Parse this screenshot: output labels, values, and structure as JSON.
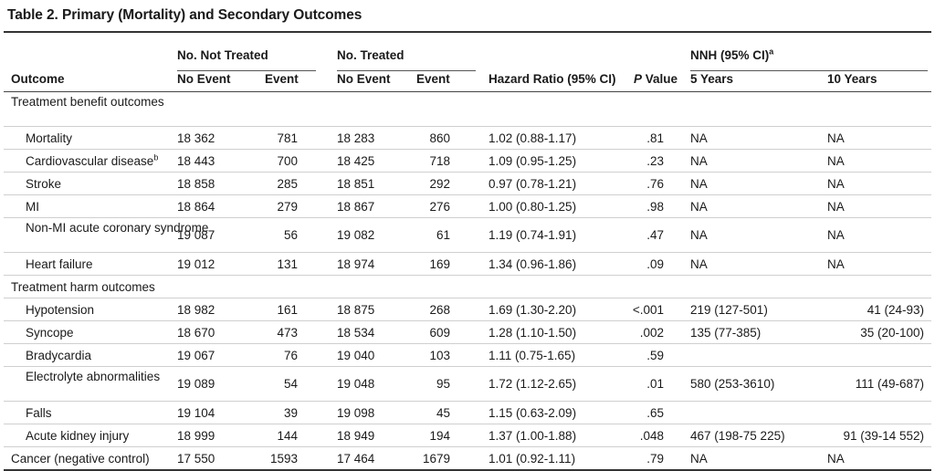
{
  "title": "Table 2. Primary (Mortality) and Secondary Outcomes",
  "groups": {
    "not_treated": "No. Not Treated",
    "treated": "No. Treated",
    "nnh": "NNH (95% CI)",
    "nnh_sup": "a"
  },
  "columns": {
    "outcome": "Outcome",
    "nt_no_event": "No Event",
    "nt_event": "Event",
    "t_no_event": "No Event",
    "t_event": "Event",
    "hr": "Hazard Ratio (95% CI)",
    "p_italic": "P",
    "p_rest": " Value",
    "y5": "5 Years",
    "y10": "10 Years"
  },
  "rows": [
    {
      "label": "Treatment benefit outcomes",
      "type": "section"
    },
    {
      "label": "Mortality",
      "sup": "",
      "ntne": "18 362",
      "nte": "781",
      "tne": "18 283",
      "te": "860",
      "hr": "1.02 (0.88-1.17)",
      "p": ".81",
      "y5": "NA",
      "y10": "NA"
    },
    {
      "label": "Cardiovascular disease",
      "sup": "b",
      "ntne": "18 443",
      "nte": "700",
      "tne": "18 425",
      "te": "718",
      "hr": "1.09 (0.95-1.25)",
      "p": ".23",
      "y5": "NA",
      "y10": "NA"
    },
    {
      "label": "Stroke",
      "sup": "",
      "ntne": "18 858",
      "nte": "285",
      "tne": "18 851",
      "te": "292",
      "hr": "0.97 (0.78-1.21)",
      "p": ".76",
      "y5": "NA",
      "y10": "NA"
    },
    {
      "label": "MI",
      "sup": "",
      "ntne": "18 864",
      "nte": "279",
      "tne": "18 867",
      "te": "276",
      "hr": "1.00 (0.80-1.25)",
      "p": ".98",
      "y5": "NA",
      "y10": "NA"
    },
    {
      "label": "Non-MI acute coronary syndrome",
      "sup": "",
      "ntne": "19 087",
      "nte": "56",
      "tne": "19 082",
      "te": "61",
      "hr": "1.19 (0.74-1.91)",
      "p": ".47",
      "y5": "NA",
      "y10": "NA"
    },
    {
      "label": "Heart failure",
      "sup": "",
      "ntne": "19 012",
      "nte": "131",
      "tne": "18 974",
      "te": "169",
      "hr": "1.34 (0.96-1.86)",
      "p": ".09",
      "y5": "NA",
      "y10": "NA"
    },
    {
      "label": "Treatment harm outcomes",
      "type": "section"
    },
    {
      "label": "Hypotension",
      "sup": "",
      "ntne": "18 982",
      "nte": "161",
      "tne": "18 875",
      "te": "268",
      "hr": "1.69 (1.30-2.20)",
      "p": "<.001",
      "y5": "219 (127-501)",
      "y10": "41 (24-93)"
    },
    {
      "label": "Syncope",
      "sup": "",
      "ntne": "18 670",
      "nte": "473",
      "tne": "18 534",
      "te": "609",
      "hr": "1.28 (1.10-1.50)",
      "p": ".002",
      "y5": "135 (77-385)",
      "y10": "35 (20-100)"
    },
    {
      "label": "Bradycardia",
      "sup": "",
      "ntne": "19 067",
      "nte": "76",
      "tne": "19 040",
      "te": "103",
      "hr": "1.11 (0.75-1.65)",
      "p": ".59",
      "y5": "",
      "y10": ""
    },
    {
      "label": "Electrolyte abnormalities",
      "sup": "",
      "ntne": "19 089",
      "nte": "54",
      "tne": "19 048",
      "te": "95",
      "hr": "1.72 (1.12-2.65)",
      "p": ".01",
      "y5": "580 (253-3610)",
      "y10": "111 (49-687)"
    },
    {
      "label": "Falls",
      "sup": "",
      "ntne": "19 104",
      "nte": "39",
      "tne": "19 098",
      "te": "45",
      "hr": "1.15 (0.63-2.09)",
      "p": ".65",
      "y5": "",
      "y10": ""
    },
    {
      "label": "Acute kidney injury",
      "sup": "",
      "ntne": "18 999",
      "nte": "144",
      "tne": "18 949",
      "te": "194",
      "hr": "1.37 (1.00-1.88)",
      "p": ".048",
      "y5": "467 (198-75 225)",
      "y10": "91 (39-14 552)"
    },
    {
      "label": "Cancer (negative control)",
      "type": "top",
      "ntne": "17 550",
      "nte": "1593",
      "tne": "17 464",
      "te": "1679",
      "hr": "1.01 (0.92-1.11)",
      "p": ".79",
      "y5": "NA",
      "y10": "NA"
    }
  ]
}
